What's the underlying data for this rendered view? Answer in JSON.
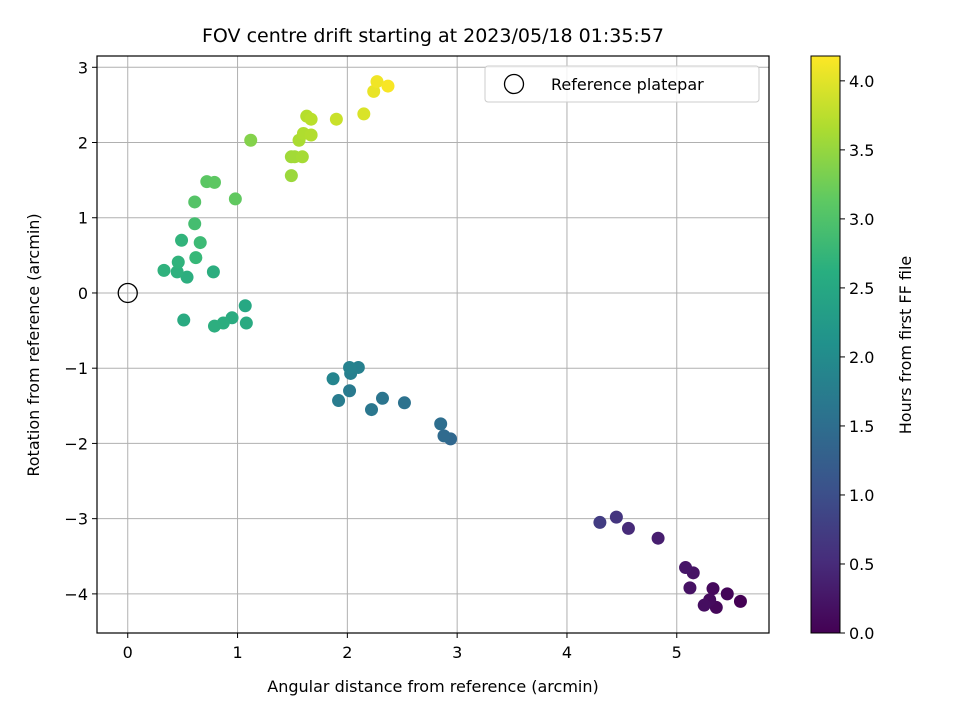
{
  "chart_data": {
    "type": "scatter",
    "title": "FOV centre drift starting at 2023/05/18 01:35:57",
    "xlabel": "Angular distance from reference (arcmin)",
    "ylabel": "Rotation from reference (arcmin)",
    "xlim": [
      -0.28,
      5.84
    ],
    "ylim": [
      -4.52,
      3.15
    ],
    "xticks": [
      0,
      1,
      2,
      3,
      4,
      5
    ],
    "xtick_labels": [
      "0",
      "1",
      "2",
      "3",
      "4",
      "5"
    ],
    "yticks": [
      -4,
      -3,
      -2,
      -1,
      0,
      1,
      2,
      3
    ],
    "ytick_labels": [
      "−4",
      "−3",
      "−2",
      "−1",
      "0",
      "1",
      "2",
      "3"
    ],
    "grid": true,
    "colormap": "viridis",
    "colorbar": {
      "label": "Hours from first FF file",
      "range": [
        0.0,
        4.18
      ],
      "ticks": [
        0.0,
        0.5,
        1.0,
        1.5,
        2.0,
        2.5,
        3.0,
        3.5,
        4.0
      ],
      "tick_labels": [
        "0.0",
        "0.5",
        "1.0",
        "1.5",
        "2.0",
        "2.5",
        "3.0",
        "3.5",
        "4.0"
      ]
    },
    "legend": {
      "entry": "Reference platepar",
      "location": "upper right"
    },
    "reference": {
      "x": 0,
      "y": 0
    },
    "points": [
      {
        "x": 5.58,
        "y": -4.1,
        "c": 0.0
      },
      {
        "x": 5.46,
        "y": -4.0,
        "c": 0.05
      },
      {
        "x": 5.36,
        "y": -4.18,
        "c": 0.08
      },
      {
        "x": 5.33,
        "y": -3.93,
        "c": 0.1
      },
      {
        "x": 5.3,
        "y": -4.08,
        "c": 0.12
      },
      {
        "x": 5.25,
        "y": -4.15,
        "c": 0.15
      },
      {
        "x": 5.12,
        "y": -3.92,
        "c": 0.2
      },
      {
        "x": 5.15,
        "y": -3.72,
        "c": 0.22
      },
      {
        "x": 5.08,
        "y": -3.65,
        "c": 0.25
      },
      {
        "x": 4.83,
        "y": -3.26,
        "c": 0.35
      },
      {
        "x": 4.56,
        "y": -3.13,
        "c": 0.5
      },
      {
        "x": 4.45,
        "y": -2.98,
        "c": 0.65
      },
      {
        "x": 4.3,
        "y": -3.05,
        "c": 0.75
      },
      {
        "x": 2.94,
        "y": -1.94,
        "c": 1.4
      },
      {
        "x": 2.88,
        "y": -1.9,
        "c": 1.45
      },
      {
        "x": 2.85,
        "y": -1.74,
        "c": 1.5
      },
      {
        "x": 2.52,
        "y": -1.46,
        "c": 1.58
      },
      {
        "x": 2.32,
        "y": -1.4,
        "c": 1.62
      },
      {
        "x": 2.22,
        "y": -1.55,
        "c": 1.66
      },
      {
        "x": 2.02,
        "y": -1.3,
        "c": 1.72
      },
      {
        "x": 1.92,
        "y": -1.43,
        "c": 1.75
      },
      {
        "x": 2.03,
        "y": -1.07,
        "c": 1.8
      },
      {
        "x": 2.1,
        "y": -0.99,
        "c": 1.83
      },
      {
        "x": 2.02,
        "y": -0.99,
        "c": 1.86
      },
      {
        "x": 1.87,
        "y": -1.14,
        "c": 1.9
      },
      {
        "x": 1.07,
        "y": -0.17,
        "c": 2.5
      },
      {
        "x": 1.08,
        "y": -0.4,
        "c": 2.55
      },
      {
        "x": 0.95,
        "y": -0.33,
        "c": 2.57
      },
      {
        "x": 0.87,
        "y": -0.4,
        "c": 2.6
      },
      {
        "x": 0.79,
        "y": -0.44,
        "c": 2.62
      },
      {
        "x": 0.51,
        "y": -0.36,
        "c": 2.55
      },
      {
        "x": 0.78,
        "y": 0.28,
        "c": 2.6
      },
      {
        "x": 0.54,
        "y": 0.21,
        "c": 2.62
      },
      {
        "x": 0.45,
        "y": 0.28,
        "c": 2.65
      },
      {
        "x": 0.33,
        "y": 0.3,
        "c": 2.68
      },
      {
        "x": 0.46,
        "y": 0.41,
        "c": 2.7
      },
      {
        "x": 0.49,
        "y": 0.7,
        "c": 2.72
      },
      {
        "x": 0.62,
        "y": 0.47,
        "c": 2.8
      },
      {
        "x": 0.66,
        "y": 0.67,
        "c": 2.85
      },
      {
        "x": 0.61,
        "y": 0.92,
        "c": 2.92
      },
      {
        "x": 0.61,
        "y": 1.21,
        "c": 3.05
      },
      {
        "x": 0.72,
        "y": 1.48,
        "c": 3.1
      },
      {
        "x": 0.79,
        "y": 1.47,
        "c": 3.12
      },
      {
        "x": 0.98,
        "y": 1.25,
        "c": 3.15
      },
      {
        "x": 1.12,
        "y": 2.03,
        "c": 3.4
      },
      {
        "x": 1.49,
        "y": 1.56,
        "c": 3.55
      },
      {
        "x": 1.49,
        "y": 1.81,
        "c": 3.58
      },
      {
        "x": 1.52,
        "y": 1.81,
        "c": 3.6
      },
      {
        "x": 1.59,
        "y": 1.81,
        "c": 3.62
      },
      {
        "x": 1.56,
        "y": 2.03,
        "c": 3.65
      },
      {
        "x": 1.6,
        "y": 2.12,
        "c": 3.68
      },
      {
        "x": 1.67,
        "y": 2.1,
        "c": 3.7
      },
      {
        "x": 1.63,
        "y": 2.35,
        "c": 3.72
      },
      {
        "x": 1.67,
        "y": 2.31,
        "c": 3.75
      },
      {
        "x": 1.9,
        "y": 2.31,
        "c": 3.85
      },
      {
        "x": 2.15,
        "y": 2.38,
        "c": 3.95
      },
      {
        "x": 2.24,
        "y": 2.68,
        "c": 4.05
      },
      {
        "x": 2.27,
        "y": 2.81,
        "c": 4.1
      },
      {
        "x": 2.37,
        "y": 2.75,
        "c": 4.15
      }
    ]
  }
}
